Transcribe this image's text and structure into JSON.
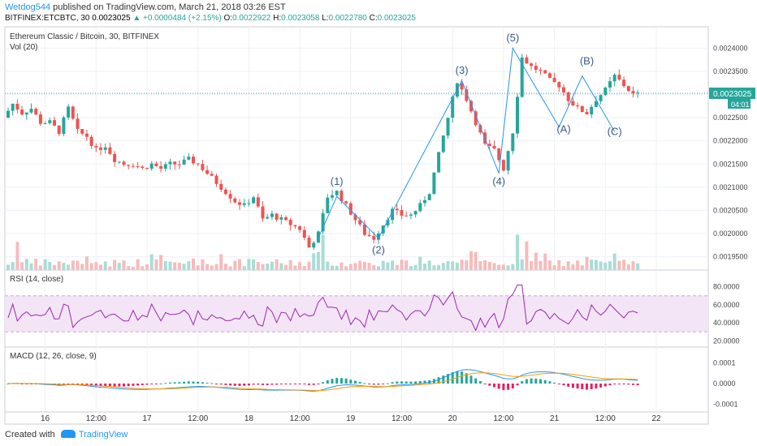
{
  "header": {
    "user": "Wetdog544",
    "published": "published on TradingView.com, March 21, 2018 03:26 EST",
    "symbol_line": "BITFINEX:ETCBTC, 30",
    "last": "0.0023025",
    "change": "▲ +0.0000484 (+2.15%)",
    "o_label": "O:",
    "o": "0.0022922",
    "h_label": "H:",
    "h": "0.0023058",
    "l_label": "L:",
    "l": "0.0022780",
    "c_label": "C:",
    "c": "0.0023025"
  },
  "panes": {
    "main_title": "Ethereum Classic / Bitcoin, 30, BITFINEX",
    "vol_title": "Vol (20)",
    "rsi_title": "RSI (14, close)",
    "macd_title": "MACD (12, 26, close, 9)"
  },
  "price_label": "0.0023025",
  "time_label": "04:01",
  "footer": {
    "created": "Created with",
    "brand": "TradingView"
  },
  "colors": {
    "up": "#26a69a",
    "down": "#ef5350",
    "rsi": "#9c27b0",
    "macd": "#2196f3",
    "signal": "#ff9800",
    "wave": "#2196f3"
  },
  "chart_data": {
    "type": "candlestick",
    "y_axis_ticks": [
      "0.0024000",
      "0.0023500",
      "0.0023000",
      "0.0022500",
      "0.0022000",
      "0.0021500",
      "0.0021000",
      "0.0020500",
      "0.0020000",
      "0.0019500"
    ],
    "ylim": [
      0.00193,
      0.00242
    ],
    "x_axis_ticks": [
      "16",
      "12:00",
      "17",
      "12:00",
      "18",
      "12:00",
      "19",
      "12:00",
      "20",
      "12:00",
      "21",
      "12:00",
      "22"
    ],
    "price_path": [
      [
        0,
        0.00225
      ],
      [
        2,
        0.00228
      ],
      [
        4,
        0.00226
      ],
      [
        6,
        0.00227
      ],
      [
        8,
        0.00224
      ],
      [
        10,
        0.00224
      ],
      [
        12,
        0.00222
      ],
      [
        14,
        0.00227
      ],
      [
        16,
        0.00222
      ],
      [
        18,
        0.00221
      ],
      [
        20,
        0.00218
      ],
      [
        22,
        0.00219
      ],
      [
        24,
        0.00216
      ],
      [
        26,
        0.00215
      ],
      [
        28,
        0.00215
      ],
      [
        30,
        0.00214
      ],
      [
        32,
        0.00215
      ],
      [
        34,
        0.00214
      ],
      [
        36,
        0.00215
      ],
      [
        38,
        0.00215
      ],
      [
        40,
        0.00216
      ],
      [
        42,
        0.00215
      ],
      [
        44,
        0.00213
      ],
      [
        46,
        0.00211
      ],
      [
        48,
        0.00209
      ],
      [
        50,
        0.00207
      ],
      [
        52,
        0.00206
      ],
      [
        54,
        0.00208
      ],
      [
        56,
        0.00203
      ],
      [
        58,
        0.00204
      ],
      [
        60,
        0.00203
      ],
      [
        62,
        0.00202
      ],
      [
        64,
        0.00201
      ],
      [
        66,
        0.00197
      ],
      [
        68,
        0.002
      ],
      [
        70,
        0.00208
      ],
      [
        72,
        0.00209
      ],
      [
        74,
        0.00206
      ],
      [
        76,
        0.00203
      ],
      [
        78,
        0.002
      ],
      [
        80,
        0.00199
      ],
      [
        82,
        0.00202
      ],
      [
        84,
        0.00205
      ],
      [
        86,
        0.00204
      ],
      [
        88,
        0.00204
      ],
      [
        90,
        0.00206
      ],
      [
        92,
        0.00209
      ],
      [
        94,
        0.00217
      ],
      [
        96,
        0.00225
      ],
      [
        98,
        0.00233
      ],
      [
        100,
        0.00229
      ],
      [
        102,
        0.00224
      ],
      [
        104,
        0.00219
      ],
      [
        106,
        0.00218
      ],
      [
        108,
        0.00214
      ],
      [
        110,
        0.00222
      ],
      [
        112,
        0.00238
      ],
      [
        114,
        0.00236
      ],
      [
        116,
        0.00235
      ],
      [
        118,
        0.00233
      ],
      [
        120,
        0.00232
      ],
      [
        122,
        0.00229
      ],
      [
        124,
        0.00227
      ],
      [
        126,
        0.00226
      ],
      [
        128,
        0.00229
      ],
      [
        130,
        0.00231
      ],
      [
        132,
        0.00234
      ],
      [
        134,
        0.00232
      ],
      [
        136,
        0.0023
      ]
    ],
    "wave_labels": [
      {
        "text": "(1)",
        "price": 0.002105,
        "t": 71
      },
      {
        "text": "(2)",
        "price": 0.001957,
        "t": 80
      },
      {
        "text": "(3)",
        "price": 0.002345,
        "t": 98
      },
      {
        "text": "(4)",
        "price": 0.002105,
        "t": 106
      },
      {
        "text": "(5)",
        "price": 0.002415,
        "t": 109
      },
      {
        "text": "(A)",
        "price": 0.002218,
        "t": 120
      },
      {
        "text": "(B)",
        "price": 0.002365,
        "t": 125
      },
      {
        "text": "(C)",
        "price": 0.002213,
        "t": 131
      }
    ],
    "wave_points": [
      [
        67,
        0.00199
      ],
      [
        71,
        0.00208
      ],
      [
        80,
        0.00199
      ],
      [
        98,
        0.00233
      ],
      [
        106,
        0.00213
      ],
      [
        109,
        0.0024
      ],
      [
        119,
        0.00223
      ],
      [
        124,
        0.00234
      ],
      [
        131,
        0.00222
      ]
    ],
    "rsi_ticks": [
      "80.0000",
      "60.0000",
      "40.0000",
      "20.0000"
    ],
    "rsi_last": 51,
    "macd_ticks": [
      "0.0001",
      "0.0000",
      "-0.0001"
    ]
  }
}
